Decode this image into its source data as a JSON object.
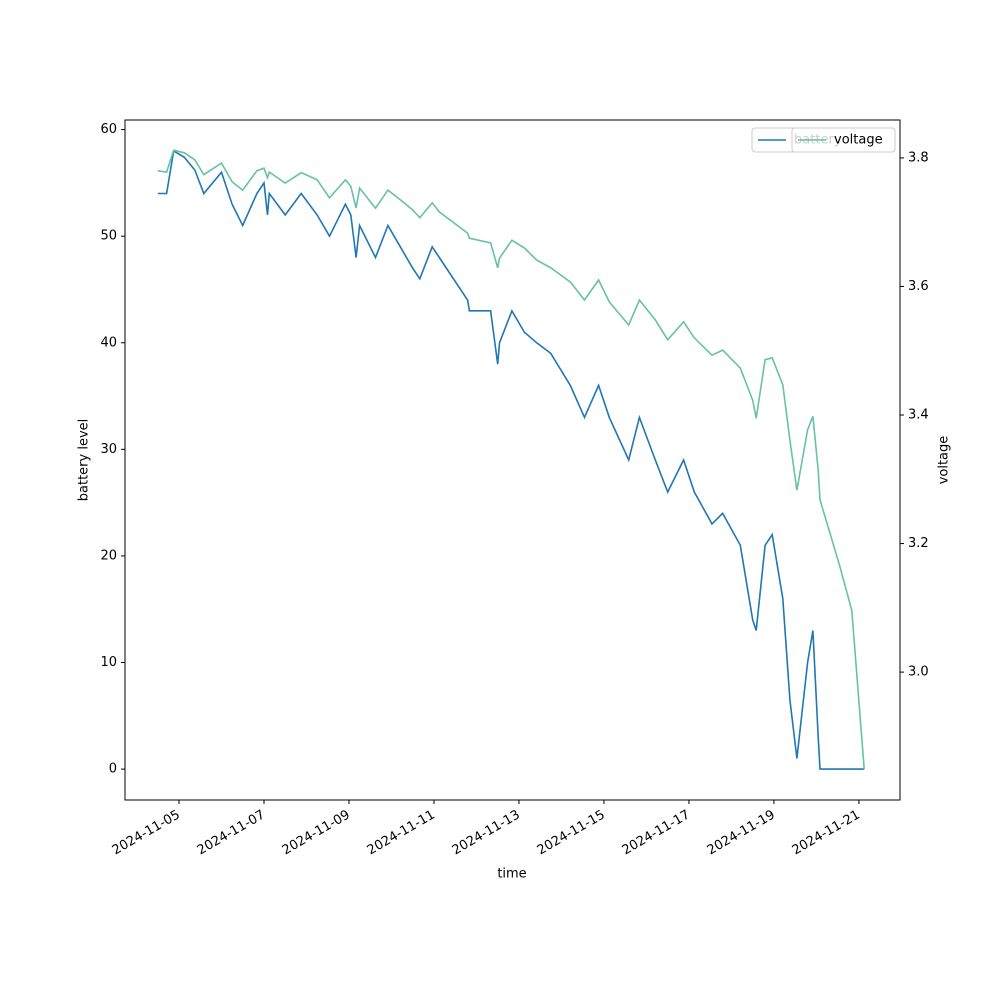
{
  "chart_data": {
    "type": "line",
    "x": [
      "2024-11-04 12:00",
      "2024-11-04 17:00",
      "2024-11-04 21:00",
      "2024-11-05 03:00",
      "2024-11-05 09:00",
      "2024-11-05 14:00",
      "2024-11-06 00:00",
      "2024-11-06 06:00",
      "2024-11-06 12:00",
      "2024-11-06 20:00",
      "2024-11-07 00:00",
      "2024-11-07 02:00",
      "2024-11-07 03:00",
      "2024-11-07 12:00",
      "2024-11-07 21:00",
      "2024-11-08 06:00",
      "2024-11-08 13:00",
      "2024-11-08 22:00",
      "2024-11-09 01:00",
      "2024-11-09 04:00",
      "2024-11-09 06:00",
      "2024-11-09 15:00",
      "2024-11-09 22:00",
      "2024-11-10 05:00",
      "2024-11-10 12:00",
      "2024-11-10 16:00",
      "2024-11-10 23:00",
      "2024-11-11 03:00",
      "2024-11-11 19:00",
      "2024-11-11 20:00",
      "2024-11-12 08:00",
      "2024-11-12 12:00",
      "2024-11-12 13:00",
      "2024-11-12 20:00",
      "2024-11-13 03:00",
      "2024-11-13 10:00",
      "2024-11-13 18:00",
      "2024-11-14 05:00",
      "2024-11-14 13:00",
      "2024-11-14 21:00",
      "2024-11-15 03:00",
      "2024-11-15 14:00",
      "2024-11-15 20:00",
      "2024-11-16 05:00",
      "2024-11-16 12:00",
      "2024-11-16 21:00",
      "2024-11-17 03:00",
      "2024-11-17 13:00",
      "2024-11-17 19:00",
      "2024-11-18 05:00",
      "2024-11-18 12:00",
      "2024-11-18 14:00",
      "2024-11-18 19:00",
      "2024-11-18 23:00",
      "2024-11-19 05:00",
      "2024-11-19 09:00",
      "2024-11-19 13:00",
      "2024-11-19 19:00",
      "2024-11-19 22:00",
      "2024-11-20 01:00",
      "2024-11-20 02:00",
      "2024-11-20 13:00",
      "2024-11-20 20:00",
      "2024-11-21 03:00"
    ],
    "series": [
      {
        "name": "battery",
        "color": "#1f77b4",
        "values": [
          54,
          54,
          58,
          57.4,
          56.2,
          54,
          56,
          53,
          51,
          54,
          55,
          52,
          54,
          52,
          54,
          52,
          50,
          53,
          52,
          48,
          51,
          48,
          51,
          49,
          47,
          46,
          49,
          48,
          44,
          43,
          43,
          38,
          40,
          43,
          41,
          40,
          39,
          36,
          33,
          36,
          33,
          29,
          33,
          29,
          26,
          29,
          26,
          23,
          24,
          21,
          14,
          13,
          21,
          22,
          16,
          6.5,
          1,
          10,
          13,
          3,
          0,
          0,
          0,
          0
        ]
      },
      {
        "name": "voltage",
        "color": "#66c2a5",
        "axis": "y2",
        "values": [
          3.78,
          3.778,
          3.812,
          3.808,
          3.797,
          3.774,
          3.792,
          3.763,
          3.75,
          3.78,
          3.784,
          3.769,
          3.778,
          3.761,
          3.777,
          3.766,
          3.738,
          3.766,
          3.756,
          3.722,
          3.753,
          3.722,
          3.75,
          3.735,
          3.719,
          3.707,
          3.73,
          3.716,
          3.683,
          3.675,
          3.668,
          3.629,
          3.644,
          3.672,
          3.66,
          3.641,
          3.629,
          3.607,
          3.579,
          3.61,
          3.576,
          3.54,
          3.579,
          3.548,
          3.517,
          3.545,
          3.52,
          3.493,
          3.501,
          3.473,
          3.423,
          3.395,
          3.486,
          3.489,
          3.447,
          3.361,
          3.283,
          3.377,
          3.398,
          3.314,
          3.268,
          3.167,
          3.096,
          2.849
        ]
      }
    ],
    "xlabel": "time",
    "ylabel": "battery level",
    "y2label": "voltage",
    "xlim": [
      "2024-11-03 17:30",
      "2024-11-21 23:12"
    ],
    "xticks": [
      "2024-11-05",
      "2024-11-07",
      "2024-11-09",
      "2024-11-11",
      "2024-11-13",
      "2024-11-15",
      "2024-11-17",
      "2024-11-19",
      "2024-11-21"
    ],
    "ylim": [
      -2.9,
      60.9
    ],
    "yticks": [
      0,
      10,
      20,
      30,
      40,
      50,
      60
    ],
    "y2lim": [
      2.801,
      3.859
    ],
    "y2ticks": [
      {
        "value": 3,
        "label": "3.0"
      },
      3.2,
      3.4,
      3.6,
      3.8
    ],
    "legend": "upper right",
    "grid": false
  }
}
